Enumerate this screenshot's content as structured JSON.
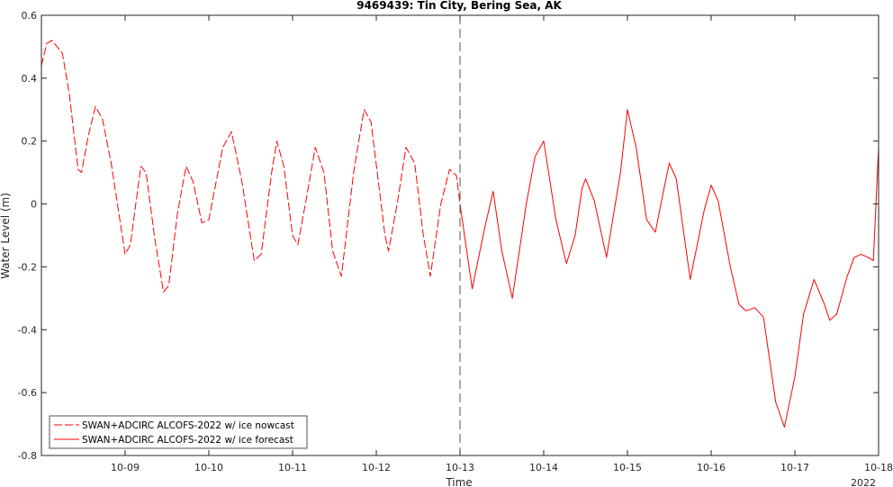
{
  "chart_data": {
    "type": "line",
    "title": "9469439: Tin City, Bering Sea, AK",
    "xlabel": "Time",
    "ylabel": "Water Level (m)",
    "xlim": [
      "2022-10-08T00:00",
      "2022-10-18T00:00"
    ],
    "ylim": [
      -0.8,
      0.6
    ],
    "x_ticks": [
      "10-09",
      "10-10",
      "10-11",
      "10-12",
      "10-13",
      "10-14",
      "10-15",
      "10-16",
      "10-17",
      "10-18"
    ],
    "x_tick_dates": [
      "2022-10-09",
      "2022-10-10",
      "2022-10-11",
      "2022-10-12",
      "2022-10-13",
      "2022-10-14",
      "2022-10-15",
      "2022-10-16",
      "2022-10-17",
      "2022-10-18"
    ],
    "x_year_label": "2022",
    "y_ticks": [
      "0.6",
      "0.4",
      "0.2",
      "0",
      "-0.2",
      "-0.4",
      "-0.6",
      "-0.8"
    ],
    "y_tick_values": [
      0.6,
      0.4,
      0.2,
      0,
      -0.2,
      -0.4,
      -0.6,
      -0.8
    ],
    "vertical_marker": "2022-10-13T00:00",
    "grid": false,
    "legend_position": "bottom-left",
    "series": [
      {
        "name": "SWAN+ADCIRC ALCOFS-2022 w/ ice nowcast",
        "style": "dashed",
        "color": "#ff0000",
        "points": [
          [
            "2022-10-08T00:00",
            0.44
          ],
          [
            "2022-10-08T01:30",
            0.51
          ],
          [
            "2022-10-08T03:00",
            0.52
          ],
          [
            "2022-10-08T04:30",
            0.5
          ],
          [
            "2022-10-08T06:00",
            0.48
          ],
          [
            "2022-10-08T08:00",
            0.35
          ],
          [
            "2022-10-08T10:30",
            0.11
          ],
          [
            "2022-10-08T11:30",
            0.1
          ],
          [
            "2022-10-08T13:30",
            0.22
          ],
          [
            "2022-10-08T15:30",
            0.31
          ],
          [
            "2022-10-08T17:30",
            0.27
          ],
          [
            "2022-10-08T20:00",
            0.13
          ],
          [
            "2022-10-09T00:00",
            -0.16
          ],
          [
            "2022-10-09T01:30",
            -0.13
          ],
          [
            "2022-10-09T04:30",
            0.12
          ],
          [
            "2022-10-09T06:00",
            0.1
          ],
          [
            "2022-10-09T08:30",
            -0.11
          ],
          [
            "2022-10-09T11:00",
            -0.28
          ],
          [
            "2022-10-09T12:30",
            -0.26
          ],
          [
            "2022-10-09T15:00",
            -0.03
          ],
          [
            "2022-10-09T17:30",
            0.12
          ],
          [
            "2022-10-09T19:30",
            0.07
          ],
          [
            "2022-10-09T22:00",
            -0.06
          ],
          [
            "2022-10-10T00:00",
            -0.05
          ],
          [
            "2022-10-10T04:00",
            0.18
          ],
          [
            "2022-10-10T06:30",
            0.23
          ],
          [
            "2022-10-10T09:30",
            0.07
          ],
          [
            "2022-10-10T13:00",
            -0.18
          ],
          [
            "2022-10-10T15:00",
            -0.16
          ],
          [
            "2022-10-10T18:00",
            0.1
          ],
          [
            "2022-10-10T19:30",
            0.2
          ],
          [
            "2022-10-10T21:30",
            0.12
          ],
          [
            "2022-10-11T00:00",
            -0.1
          ],
          [
            "2022-10-11T01:30",
            -0.13
          ],
          [
            "2022-10-11T04:00",
            0.02
          ],
          [
            "2022-10-11T06:30",
            0.18
          ],
          [
            "2022-10-11T09:00",
            0.1
          ],
          [
            "2022-10-11T11:30",
            -0.15
          ],
          [
            "2022-10-11T14:00",
            -0.23
          ],
          [
            "2022-10-11T17:30",
            0.1
          ],
          [
            "2022-10-11T20:30",
            0.3
          ],
          [
            "2022-10-11T22:30",
            0.26
          ],
          [
            "2022-10-12T02:30",
            -0.1
          ],
          [
            "2022-10-12T03:30",
            -0.15
          ],
          [
            "2022-10-12T06:00",
            0.0
          ],
          [
            "2022-10-12T08:30",
            0.18
          ],
          [
            "2022-10-12T11:00",
            0.13
          ],
          [
            "2022-10-12T13:30",
            -0.1
          ],
          [
            "2022-10-12T15:30",
            -0.23
          ],
          [
            "2022-10-12T18:30",
            0.0
          ],
          [
            "2022-10-12T21:00",
            0.11
          ],
          [
            "2022-10-12T23:00",
            0.09
          ],
          [
            "2022-10-13T00:00",
            0.0
          ]
        ]
      },
      {
        "name": "SWAN+ADCIRC ALCOFS-2022 w/ ice forecast",
        "style": "solid",
        "color": "#ff0000",
        "points": [
          [
            "2022-10-13T00:00",
            0.0
          ],
          [
            "2022-10-13T03:30",
            -0.27
          ],
          [
            "2022-10-13T07:00",
            -0.08
          ],
          [
            "2022-10-13T09:30",
            0.04
          ],
          [
            "2022-10-13T12:00",
            -0.15
          ],
          [
            "2022-10-13T15:00",
            -0.3
          ],
          [
            "2022-10-13T19:00",
            0.0
          ],
          [
            "2022-10-13T21:30",
            0.15
          ],
          [
            "2022-10-14T00:00",
            0.2
          ],
          [
            "2022-10-14T03:30",
            -0.05
          ],
          [
            "2022-10-14T06:30",
            -0.19
          ],
          [
            "2022-10-14T09:00",
            -0.1
          ],
          [
            "2022-10-14T11:00",
            0.05
          ],
          [
            "2022-10-14T12:00",
            0.08
          ],
          [
            "2022-10-14T14:30",
            0.01
          ],
          [
            "2022-10-14T18:00",
            -0.17
          ],
          [
            "2022-10-14T22:00",
            0.1
          ],
          [
            "2022-10-15T00:00",
            0.3
          ],
          [
            "2022-10-15T02:30",
            0.18
          ],
          [
            "2022-10-15T05:30",
            -0.05
          ],
          [
            "2022-10-15T08:00",
            -0.09
          ],
          [
            "2022-10-15T10:30",
            0.05
          ],
          [
            "2022-10-15T12:00",
            0.13
          ],
          [
            "2022-10-15T14:00",
            0.08
          ],
          [
            "2022-10-15T18:00",
            -0.24
          ],
          [
            "2022-10-15T22:00",
            -0.02
          ],
          [
            "2022-10-16T00:00",
            0.06
          ],
          [
            "2022-10-16T02:00",
            0.01
          ],
          [
            "2022-10-16T05:30",
            -0.2
          ],
          [
            "2022-10-16T08:00",
            -0.32
          ],
          [
            "2022-10-16T10:00",
            -0.34
          ],
          [
            "2022-10-16T12:30",
            -0.33
          ],
          [
            "2022-10-16T15:00",
            -0.36
          ],
          [
            "2022-10-16T18:30",
            -0.63
          ],
          [
            "2022-10-16T21:00",
            -0.71
          ],
          [
            "2022-10-17T00:00",
            -0.55
          ],
          [
            "2022-10-17T02:30",
            -0.35
          ],
          [
            "2022-10-17T05:30",
            -0.24
          ],
          [
            "2022-10-17T08:30",
            -0.32
          ],
          [
            "2022-10-17T10:00",
            -0.37
          ],
          [
            "2022-10-17T12:00",
            -0.35
          ],
          [
            "2022-10-17T15:00",
            -0.23
          ],
          [
            "2022-10-17T17:00",
            -0.17
          ],
          [
            "2022-10-17T19:00",
            -0.16
          ],
          [
            "2022-10-17T21:00",
            -0.17
          ],
          [
            "2022-10-17T22:30",
            -0.18
          ],
          [
            "2022-10-18T00:00",
            0.18
          ]
        ]
      }
    ]
  }
}
